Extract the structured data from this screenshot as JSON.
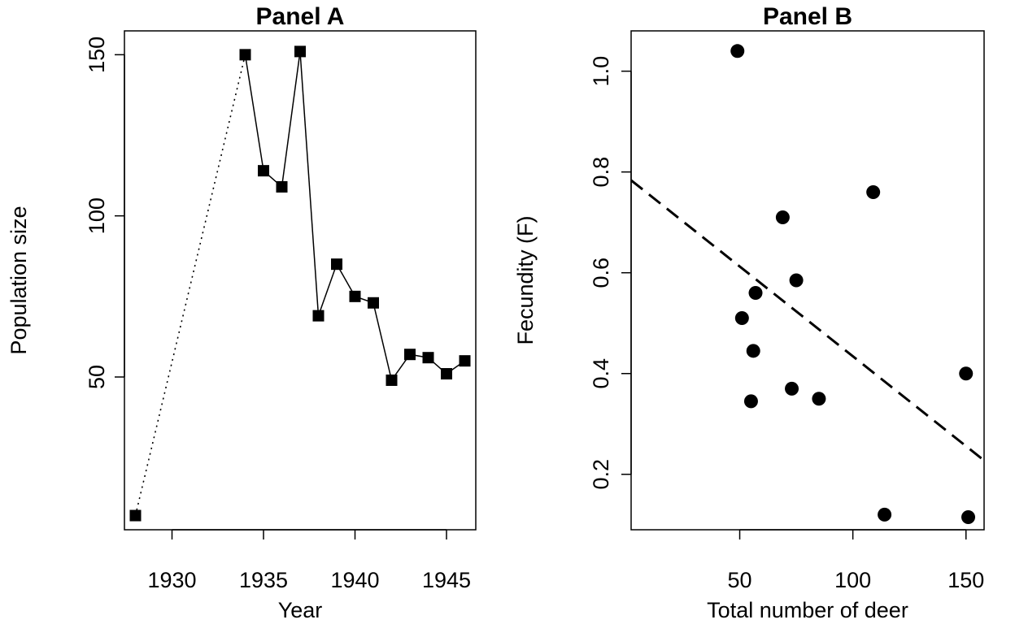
{
  "chart_data": [
    {
      "type": "line",
      "title": "Panel A",
      "xlabel": "Year",
      "ylabel": "Population size",
      "xlim": [
        1927.4,
        1946.6
      ],
      "ylim": [
        2.6,
        157.4
      ],
      "xticks": [
        1930,
        1935,
        1940,
        1945
      ],
      "yticks": [
        50,
        100,
        150
      ],
      "grid": false,
      "series": [
        {
          "marker": "square",
          "color": "#000000",
          "points": [
            {
              "x": 1928,
              "y": 7
            },
            {
              "x": 1934,
              "y": 150
            },
            {
              "x": 1935,
              "y": 114
            },
            {
              "x": 1936,
              "y": 109
            },
            {
              "x": 1937,
              "y": 151
            },
            {
              "x": 1938,
              "y": 69
            },
            {
              "x": 1939,
              "y": 85
            },
            {
              "x": 1940,
              "y": 75
            },
            {
              "x": 1941,
              "y": 73
            },
            {
              "x": 1942,
              "y": 49
            },
            {
              "x": 1943,
              "y": 57
            },
            {
              "x": 1944,
              "y": 56
            },
            {
              "x": 1945,
              "y": 51
            },
            {
              "x": 1946,
              "y": 55
            }
          ],
          "dotted_segments": [
            [
              0,
              1
            ]
          ]
        }
      ]
    },
    {
      "type": "scatter",
      "title": "Panel B",
      "xlabel": "Total number of deer",
      "ylabel": "Fecundity (F)",
      "xlim": [
        2,
        158
      ],
      "ylim": [
        0.09,
        1.08
      ],
      "xticks": [
        50,
        100,
        150
      ],
      "yticks": [
        0.2,
        0.4,
        0.6,
        0.8,
        1.0
      ],
      "ytick_labels": [
        "0.2",
        "0.4",
        "0.6",
        "0.8",
        "1.0"
      ],
      "grid": false,
      "series": [
        {
          "marker": "circle",
          "color": "#000000",
          "points": [
            {
              "x": 49,
              "y": 1.04
            },
            {
              "x": 109,
              "y": 0.76
            },
            {
              "x": 69,
              "y": 0.71
            },
            {
              "x": 75,
              "y": 0.585
            },
            {
              "x": 57,
              "y": 0.56
            },
            {
              "x": 51,
              "y": 0.51
            },
            {
              "x": 56,
              "y": 0.445
            },
            {
              "x": 150,
              "y": 0.4
            },
            {
              "x": 73,
              "y": 0.37
            },
            {
              "x": 85,
              "y": 0.35
            },
            {
              "x": 55,
              "y": 0.345
            },
            {
              "x": 114,
              "y": 0.12
            },
            {
              "x": 151,
              "y": 0.115
            }
          ]
        }
      ],
      "trend_line": {
        "style": "dashed",
        "x": [
          2,
          158
        ],
        "y": [
          0.7835,
          0.2275
        ]
      }
    }
  ]
}
